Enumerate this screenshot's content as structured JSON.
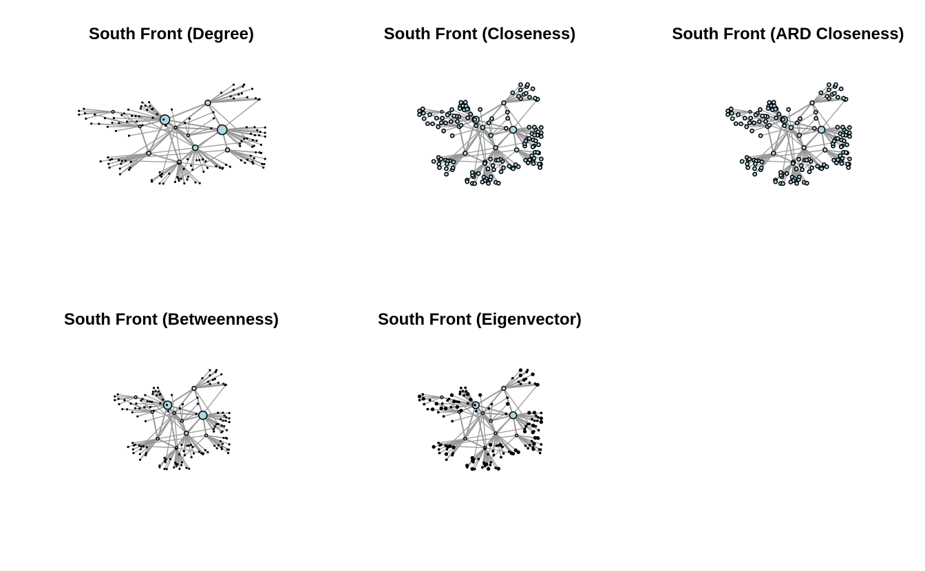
{
  "panels": [
    {
      "title": "South Front (Degree)",
      "measure": "degree",
      "node_color": "#add8e6",
      "edge_color": "#999999"
    },
    {
      "title": "South Front (Closeness)",
      "measure": "closeness",
      "node_color": "#add8e6",
      "edge_color": "#999999"
    },
    {
      "title": "South Front (ARD Closeness)",
      "measure": "ard-closeness",
      "node_color": "#add8e6",
      "edge_color": "#999999"
    },
    {
      "title": "South Front (Betweenness)",
      "measure": "betweenness",
      "node_color": "#add8e6",
      "edge_color": "#999999"
    },
    {
      "title": "South Front (Eigenvector)",
      "measure": "eigenvector",
      "node_color": "#add8e6",
      "edge_color": "#999999"
    }
  ]
}
